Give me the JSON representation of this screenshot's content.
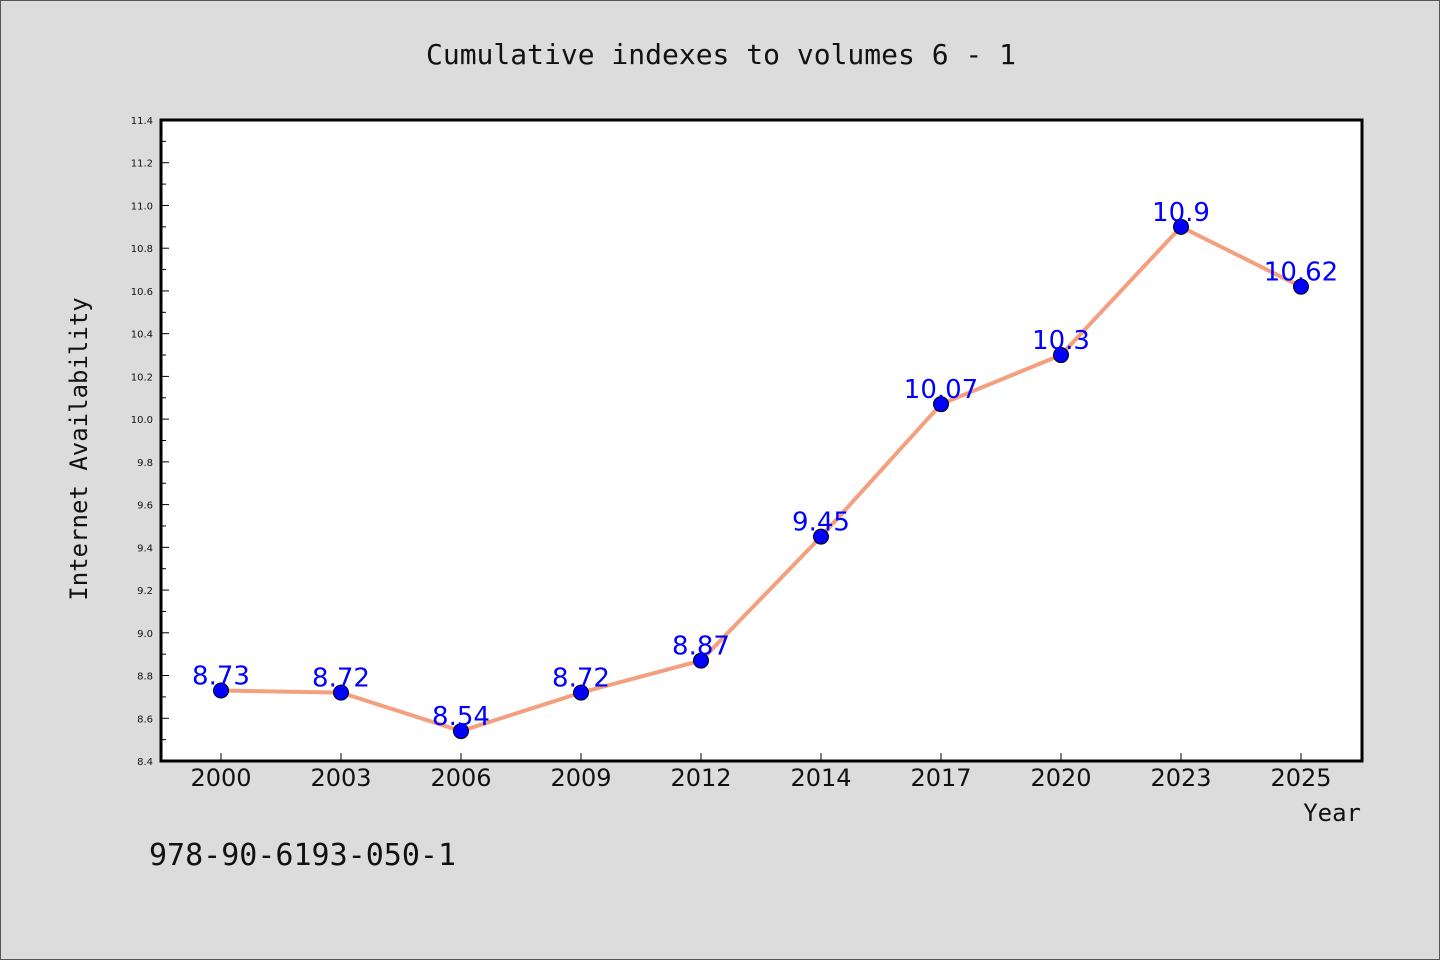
{
  "chart_data": {
    "type": "line",
    "title": "Cumulative indexes to volumes 6 - 1",
    "xlabel": "Year",
    "ylabel": "Internet Availability",
    "categories": [
      "2000",
      "2003",
      "2006",
      "2009",
      "2012",
      "2014",
      "2017",
      "2020",
      "2023",
      "2025"
    ],
    "series": [
      {
        "values": [
          8.73,
          8.72,
          8.54,
          8.72,
          8.87,
          9.45,
          10.07,
          10.3,
          10.9,
          10.62
        ],
        "line_color": "#f4a07e",
        "marker_color": "#0000ff"
      }
    ],
    "data_labels": [
      "8.73",
      "8.72",
      "8.54",
      "8.72",
      "8.87",
      "9.45",
      "10.07",
      "10.3",
      "10.9",
      "10.62"
    ],
    "ylim": [
      8.4,
      11.4
    ],
    "yticks": [
      "8.4",
      "8.6",
      "8.8",
      "9.0",
      "9.2",
      "9.4",
      "9.6",
      "9.8",
      "10.0",
      "10.2",
      "10.4",
      "10.6",
      "10.8",
      "11.0",
      "11.2",
      "11.4"
    ],
    "grid": false,
    "legend": "none"
  },
  "footnote": "978-90-6193-050-1"
}
